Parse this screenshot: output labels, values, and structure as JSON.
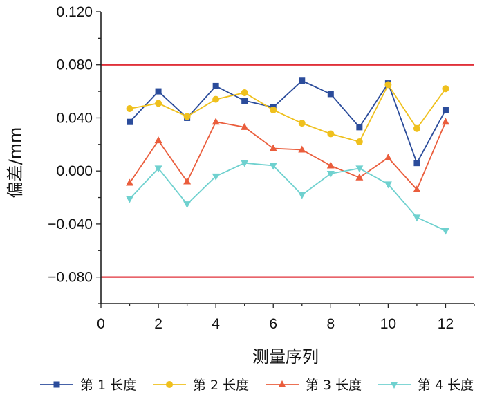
{
  "chart_data": {
    "type": "line",
    "title": "",
    "xlabel": "测量序列",
    "ylabel": "偏差/mm",
    "xlim": [
      0,
      13
    ],
    "ylim": [
      -0.1,
      0.12
    ],
    "x_ticks": [
      0,
      2,
      4,
      6,
      8,
      10,
      12
    ],
    "x_tick_labels": [
      "0",
      "2",
      "4",
      "6",
      "8",
      "10",
      "12"
    ],
    "y_ticks": [
      -0.08,
      -0.04,
      0.0,
      0.04,
      0.08,
      0.12
    ],
    "y_tick_labels": [
      "−0.080",
      "−0.040",
      "0.000",
      "0.040",
      "0.080",
      "0.120"
    ],
    "grid": false,
    "legend_position": "bottom",
    "reference_lines": [
      {
        "y": 0.08,
        "color": "#e0303a"
      },
      {
        "y": -0.08,
        "color": "#e0303a"
      }
    ],
    "x": [
      1,
      2,
      3,
      4,
      5,
      6,
      7,
      8,
      9,
      10,
      11,
      12
    ],
    "series": [
      {
        "name": "第 1 长度",
        "color": "#2b4c9b",
        "marker": "square",
        "values": [
          0.037,
          0.06,
          0.04,
          0.064,
          0.053,
          0.048,
          0.068,
          0.058,
          0.033,
          0.066,
          0.006,
          0.046
        ]
      },
      {
        "name": "第 2 长度",
        "color": "#efc01d",
        "marker": "circle",
        "values": [
          0.047,
          0.051,
          0.041,
          0.054,
          0.059,
          0.046,
          0.036,
          0.028,
          0.022,
          0.065,
          0.032,
          0.062
        ]
      },
      {
        "name": "第 3 长度",
        "color": "#ea5d3c",
        "marker": "triangle-up",
        "values": [
          -0.009,
          0.023,
          -0.008,
          0.037,
          0.033,
          0.017,
          0.016,
          0.004,
          -0.005,
          0.01,
          -0.014,
          0.037
        ]
      },
      {
        "name": "第 4 长度",
        "color": "#6fd1cf",
        "marker": "triangle-down",
        "values": [
          -0.021,
          0.002,
          -0.025,
          -0.004,
          0.006,
          0.004,
          -0.018,
          -0.002,
          0.002,
          -0.01,
          -0.035,
          -0.045
        ]
      }
    ]
  }
}
